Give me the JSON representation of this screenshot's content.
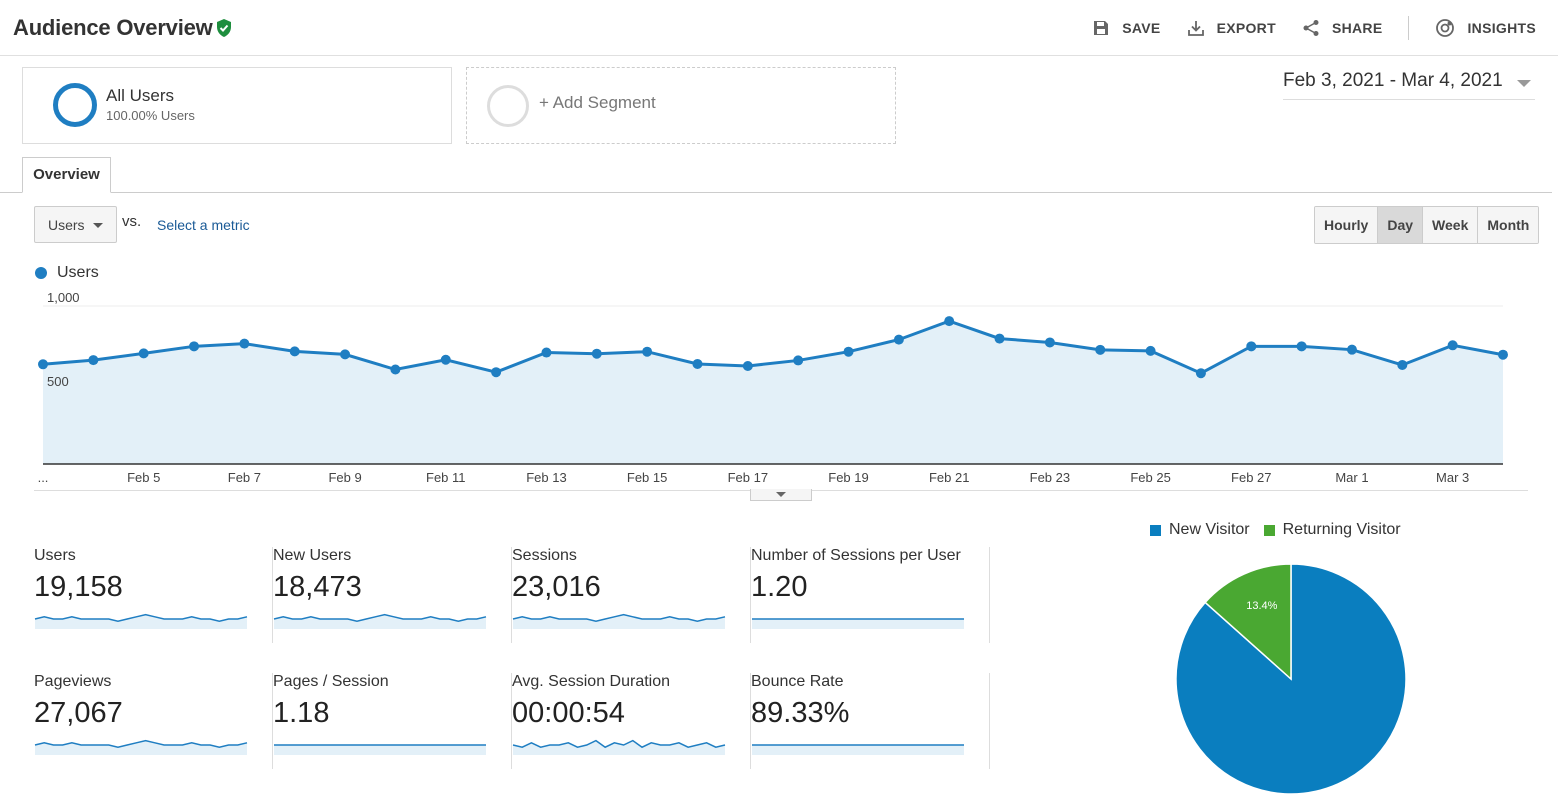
{
  "header": {
    "title": "Audience Overview",
    "actions": {
      "save": "SAVE",
      "export": "EXPORT",
      "share": "SHARE",
      "insights": "INSIGHTS"
    }
  },
  "segments": {
    "all_users": {
      "name": "All Users",
      "sub": "100.00% Users"
    },
    "add_segment": "+ Add Segment"
  },
  "date_range": "Feb 3, 2021 - Mar 4, 2021",
  "tab": "Overview",
  "metric_selector": {
    "value": "Users",
    "vs": "vs.",
    "select_metric": "Select a metric"
  },
  "granularity": [
    {
      "label": "Hourly",
      "active": false
    },
    {
      "label": "Day",
      "active": true
    },
    {
      "label": "Week",
      "active": false
    },
    {
      "label": "Month",
      "active": false
    }
  ],
  "chart_data": [
    {
      "type": "area",
      "series": [
        {
          "name": "Users",
          "color": "#1f7ec2",
          "values": [
            653,
            678,
            718,
            760,
            776,
            730,
            712,
            622,
            680,
            606,
            723,
            716,
            728,
            655,
            643,
            676,
            728,
            800,
            910,
            806,
            783,
            739,
            733,
            600,
            760,
            760,
            740,
            649,
            766,
            710
          ]
        }
      ],
      "y_ticks": [
        "1,000",
        "500"
      ],
      "x_tick_labels": [
        "...",
        "Feb 5",
        "Feb 7",
        "Feb 9",
        "Feb 11",
        "Feb 13",
        "Feb 15",
        "Feb 17",
        "Feb 19",
        "Feb 21",
        "Feb 23",
        "Feb 25",
        "Feb 27",
        "Mar 1",
        "Mar 3"
      ],
      "legend": "top-left",
      "grid": true
    },
    {
      "type": "pie",
      "slices": [
        {
          "label": "New Visitor",
          "value": 86.6,
          "text": "86.6%",
          "color": "#0a7ebf"
        },
        {
          "label": "Returning Visitor",
          "value": 13.4,
          "text": "13.4%",
          "color": "#4aa832"
        }
      ],
      "legend": "top"
    }
  ],
  "scorecards": [
    {
      "label": "Users",
      "value": "19,158",
      "trend": [
        5,
        6,
        5,
        5,
        6,
        5,
        5,
        5,
        5,
        4,
        5,
        6,
        7,
        6,
        5,
        5,
        5,
        6,
        5,
        5,
        4,
        5,
        5,
        6
      ]
    },
    {
      "label": "New Users",
      "value": "18,473",
      "trend": [
        5,
        6,
        5,
        5,
        6,
        5,
        5,
        5,
        5,
        4,
        5,
        6,
        7,
        6,
        5,
        5,
        5,
        6,
        5,
        5,
        4,
        5,
        5,
        6
      ]
    },
    {
      "label": "Sessions",
      "value": "23,016",
      "trend": [
        5,
        6,
        5,
        5,
        6,
        5,
        5,
        5,
        5,
        4,
        5,
        6,
        7,
        6,
        5,
        5,
        5,
        6,
        5,
        5,
        4,
        5,
        5,
        6
      ]
    },
    {
      "label": "Number of Sessions per User",
      "value": "1.20",
      "trend": [
        5,
        5,
        5,
        5,
        5,
        5,
        5,
        5,
        5,
        5,
        5,
        5,
        5,
        5,
        5,
        5,
        5,
        5,
        5,
        5,
        5,
        5,
        5,
        5
      ]
    },
    {
      "label": "Pageviews",
      "value": "27,067",
      "trend": [
        5,
        6,
        5,
        5,
        6,
        5,
        5,
        5,
        5,
        4,
        5,
        6,
        7,
        6,
        5,
        5,
        5,
        6,
        5,
        5,
        4,
        5,
        5,
        6
      ]
    },
    {
      "label": "Pages / Session",
      "value": "1.18",
      "trend": [
        5,
        5,
        5,
        5,
        5,
        5,
        5,
        5,
        5,
        5,
        5,
        5,
        5,
        5,
        5,
        5,
        5,
        5,
        5,
        5,
        5,
        5,
        5,
        5
      ]
    },
    {
      "label": "Avg. Session Duration",
      "value": "00:00:54",
      "trend": [
        5,
        4,
        6,
        4,
        5,
        5,
        6,
        4,
        5,
        7,
        4,
        6,
        5,
        7,
        4,
        6,
        5,
        5,
        6,
        4,
        5,
        6,
        4,
        5
      ]
    },
    {
      "label": "Bounce Rate",
      "value": "89.33%",
      "trend": [
        5,
        5,
        5,
        5,
        5,
        5,
        5,
        5,
        5,
        5,
        5,
        5,
        5,
        5,
        5,
        5,
        5,
        5,
        5,
        5,
        5,
        5,
        5,
        5
      ]
    }
  ]
}
